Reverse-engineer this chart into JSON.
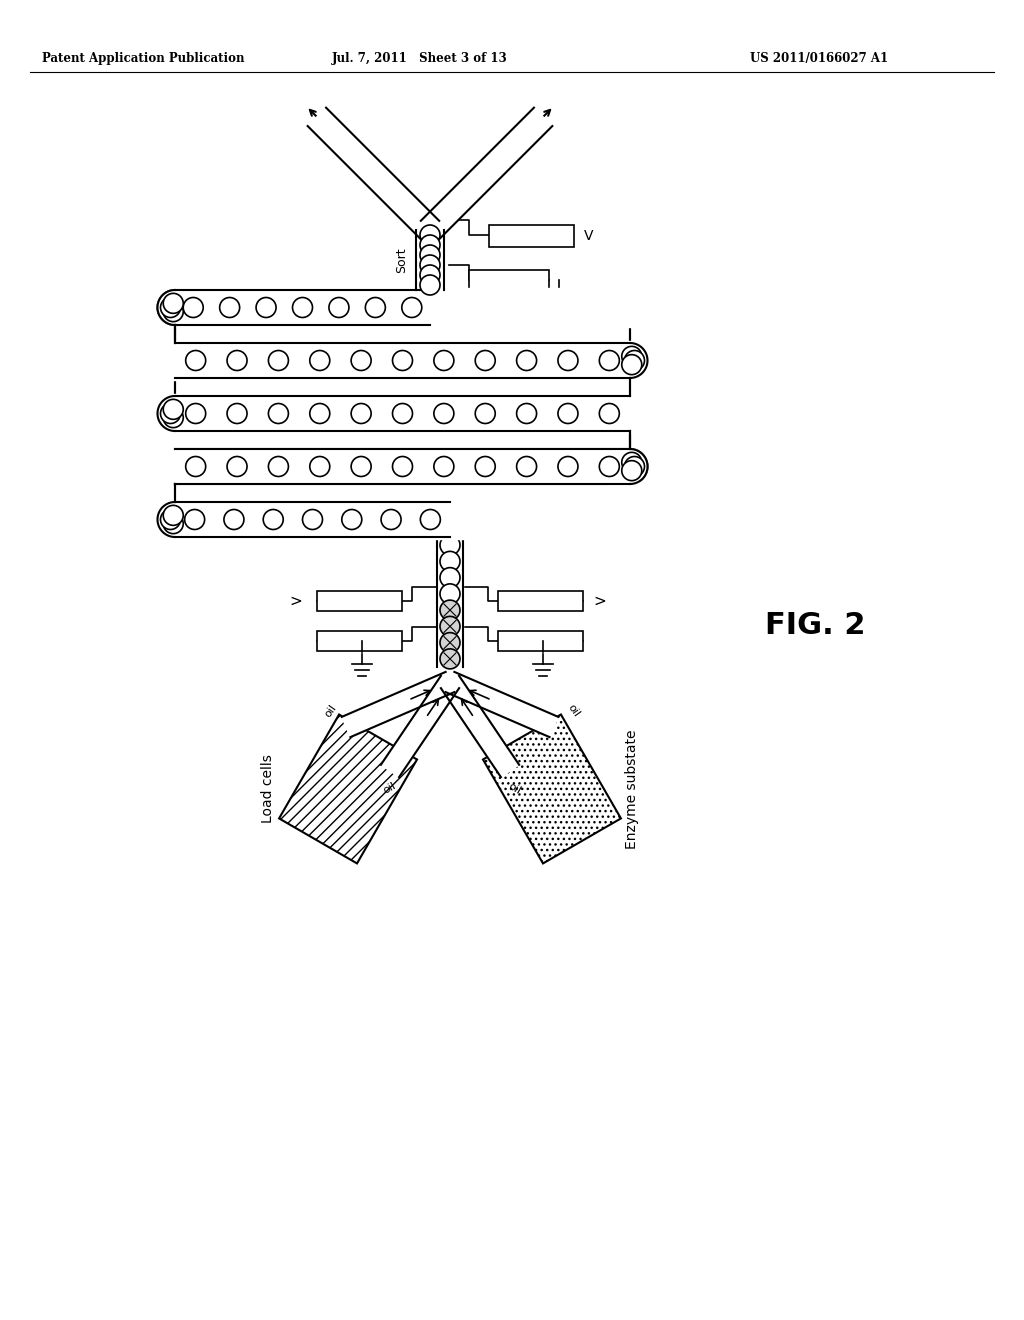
{
  "header_left": "Patent Application Publication",
  "header_mid": "Jul. 7, 2011   Sheet 3 of 13",
  "header_right": "US 2011/0166027 A1",
  "fig_label": "FIG. 2",
  "background_color": "#ffffff",
  "line_color": "#000000",
  "label_sort": "Sort",
  "label_load": "Load cells",
  "label_enzyme": "Enzyme substate"
}
